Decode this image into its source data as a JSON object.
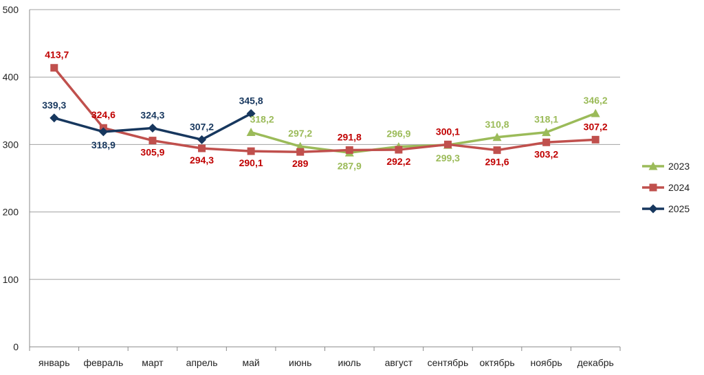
{
  "chart_data": {
    "type": "line",
    "categories": [
      "январь",
      "февраль",
      "март",
      "апрель",
      "май",
      "июнь",
      "июль",
      "август",
      "сентябрь",
      "октябрь",
      "ноябрь",
      "декабрь"
    ],
    "ylim": [
      0,
      500
    ],
    "yticks": [
      "0",
      "100",
      "200",
      "300",
      "400",
      "500"
    ],
    "grid": true,
    "legend_position": "right",
    "series": [
      {
        "name": "2023",
        "color": "#9BBB59",
        "label_color": "#9BBB59",
        "marker": "triangle",
        "values": [
          null,
          null,
          null,
          null,
          318.2,
          297.2,
          287.9,
          296.9,
          299.3,
          310.8,
          318.1,
          346.2
        ],
        "labels": [
          null,
          null,
          null,
          null,
          "318,2",
          "297,2",
          "287,9",
          "296,9",
          "299,3",
          "310,8",
          "318,1",
          "346,2"
        ]
      },
      {
        "name": "2024",
        "color": "#C0504D",
        "label_color": "#C00000",
        "marker": "square",
        "values": [
          413.7,
          324.6,
          305.9,
          294.3,
          290.1,
          289,
          291.8,
          292.2,
          300.1,
          291.6,
          303.2,
          307.2
        ],
        "labels": [
          "413,7",
          "324,6",
          "305,9",
          "294,3",
          "290,1",
          "289",
          "291,8",
          "292,2",
          "300,1",
          "291,6",
          "303,2",
          "307,2"
        ]
      },
      {
        "name": "2025",
        "color": "#17375E",
        "label_color": "#17375E",
        "marker": "diamond",
        "values": [
          339.3,
          318.9,
          324.3,
          307.2,
          345.8,
          null,
          null,
          null,
          null,
          null,
          null,
          null
        ],
        "labels": [
          "339,3",
          "318,9",
          "324,3",
          "307,2",
          "345,8",
          null,
          null,
          null,
          null,
          null,
          null,
          null
        ]
      }
    ]
  }
}
